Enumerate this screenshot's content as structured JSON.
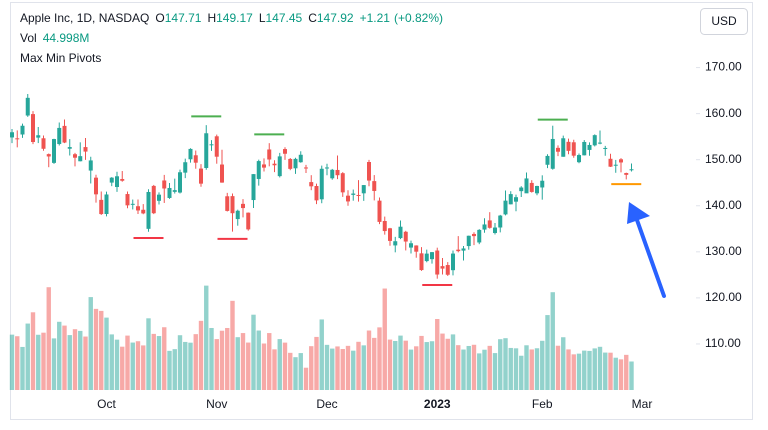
{
  "chart_data": {
    "type": "candlestick",
    "symbol": "Apple Inc, 1D, NASDAQ",
    "ohlc_labels": [
      "O",
      "H",
      "L",
      "C"
    ],
    "change": {
      "value": 1.21,
      "label": "+1.21"
    },
    "change_percent": {
      "value": 0.82,
      "label": "(+0.82%)"
    },
    "volume_name": "Vol",
    "volume_value_label": "44.998M",
    "indicator": "Max Min Pivots",
    "currency": "USD",
    "categories": [
      null,
      null,
      null,
      null,
      null,
      null,
      null,
      null,
      null,
      null,
      null,
      null,
      null,
      null,
      null,
      null,
      null,
      null,
      "Oct",
      null,
      null,
      null,
      null,
      null,
      null,
      null,
      null,
      null,
      null,
      null,
      null,
      null,
      null,
      null,
      null,
      null,
      null,
      null,
      null,
      "Nov",
      null,
      null,
      null,
      null,
      null,
      null,
      null,
      null,
      null,
      null,
      null,
      null,
      null,
      null,
      null,
      null,
      null,
      null,
      null,
      null,
      "Dec",
      null,
      null,
      null,
      null,
      null,
      null,
      null,
      null,
      null,
      null,
      null,
      null,
      null,
      null,
      null,
      null,
      null,
      null,
      null,
      null,
      "2023",
      null,
      null,
      null,
      null,
      null,
      null,
      null,
      null,
      null,
      null,
      null,
      null,
      null,
      null,
      null,
      null,
      null,
      null,
      null,
      "Feb",
      null,
      null,
      null,
      null,
      null,
      null,
      null,
      null,
      null,
      null,
      null,
      null,
      null,
      null,
      null,
      null,
      null,
      null,
      "Mar"
    ],
    "open": [
      154.83,
      154.64,
      155.47,
      159.59,
      159.9,
      154.79,
      154.65,
      151.21,
      149.31,
      153.4,
      157.34,
      152.38,
      151.19,
      149.66,
      152.74,
      147.64,
      146.1,
      141.28,
      138.21,
      145.03,
      144.07,
      145.81,
      142.54,
      140.42,
      139.9,
      139.13,
      134.99,
      144.31,
      141.07,
      145.49,
      141.69,
      143.02,
      142.87,
      147.19,
      150.09,
      150.96,
      148.07,
      148.2,
      153.16,
      155.08,
      148.95,
      142.06,
      142.09,
      137.11,
      140.41,
      138.5,
      141.24,
      145.82,
      148.97,
      152.22,
      149.13,
      146.43,
      152.31,
      150.16,
      148.13,
      149.45,
      148.31,
      145.14,
      144.29,
      141.4,
      148.21,
      145.96,
      147.77,
      147.07,
      142.19,
      142.36,
      142.34,
      142.7,
      149.5,
      145.35,
      141.11,
      136.69,
      135.11,
      131.39,
      132.98,
      134.35,
      130.92,
      131.38,
      129.67,
      127.99,
      128.41,
      130.28,
      126.89,
      127.13,
      126.01,
      130.47,
      130.26,
      131.25,
      133.88,
      132.03,
      134.83,
      136.82,
      134.08,
      135.28,
      138.12,
      140.31,
      140.89,
      143.17,
      142.7,
      144.96,
      142.7,
      143.97,
      148.9,
      148.03,
      152.57,
      150.64,
      153.88,
      153.78,
      149.46,
      150.95,
      152.12,
      153.11,
      153.51,
      152.35,
      150.2,
      148.87,
      150.09,
      147.11,
      147.71,
      null,
      null
    ],
    "high": [
      156.67,
      156.36,
      157.82,
      164.26,
      160.54,
      157.1,
      155.24,
      151.35,
      154.56,
      158.08,
      158.74,
      154.47,
      151.47,
      153.77,
      154.72,
      150.64,
      146.72,
      143.1,
      143.07,
      146.22,
      147.38,
      147.54,
      143.1,
      141.35,
      141.35,
      140.36,
      143.59,
      144.52,
      142.9,
      146.7,
      144.95,
      145.89,
      147.85,
      150.23,
      152.49,
      151.99,
      149.05,
      157.5,
      154.24,
      155.45,
      152.17,
      142.8,
      142.67,
      139.15,
      141.43,
      138.55,
      146.87,
      150.01,
      150.28,
      153.59,
      149.87,
      151.48,
      152.7,
      150.37,
      150.42,
      151.83,
      148.88,
      146.64,
      144.81,
      148.72,
      149.13,
      148.0,
      150.92,
      147.3,
      143.37,
      143.52,
      145.57,
      144.5,
      149.97,
      146.66,
      141.79,
      137.65,
      135.2,
      133.25,
      136.81,
      134.56,
      132.42,
      131.41,
      131.03,
      130.48,
      129.95,
      130.9,
      128.66,
      127.77,
      130.29,
      133.41,
      131.26,
      133.51,
      134.26,
      134.92,
      137.29,
      138.61,
      136.25,
      138.02,
      143.32,
      143.16,
      142.43,
      144.25,
      147.23,
      145.55,
      144.34,
      146.61,
      151.18,
      157.38,
      153.1,
      155.23,
      154.58,
      154.33,
      151.34,
      154.26,
      153.77,
      155.5,
      156.33,
      153.0,
      151.3,
      149.95,
      150.34,
      147.19,
      149.17,
      null,
      null
    ],
    "low": [
      153.61,
      152.68,
      154.75,
      159.3,
      153.37,
      153.61,
      151.94,
      148.37,
      149.1,
      153.08,
      153.6,
      150.91,
      148.56,
      149.64,
      149.95,
      144.84,
      140.68,
      138.0,
      137.69,
      144.26,
      143.01,
      145.22,
      139.45,
      139.2,
      138.22,
      138.16,
      134.37,
      138.19,
      140.27,
      140.61,
      141.5,
      142.65,
      142.65,
      146.0,
      149.36,
      148.04,
      144.13,
      147.82,
      151.92,
      149.13,
      145.0,
      138.75,
      134.38,
      135.67,
      137.49,
      134.59,
      139.5,
      144.37,
      147.43,
      148.56,
      147.29,
      146.15,
      149.97,
      147.72,
      146.93,
      149.34,
      147.12,
      143.38,
      140.35,
      140.55,
      146.61,
      145.65,
      145.77,
      141.92,
      140.0,
      141.1,
      140.9,
      141.06,
      144.24,
      141.16,
      136.02,
      133.73,
      131.32,
      129.89,
      132.75,
      130.3,
      129.64,
      128.72,
      125.87,
      127.73,
      127.43,
      124.17,
      125.08,
      124.76,
      124.89,
      129.89,
      128.12,
      130.46,
      131.44,
      131.66,
      134.13,
      135.03,
      133.77,
      134.22,
      137.9,
      140.3,
      138.81,
      141.9,
      143.08,
      142.85,
      142.28,
      141.32,
      148.17,
      147.83,
      150.78,
      150.64,
      151.17,
      150.42,
      149.22,
      150.92,
      150.86,
      152.88,
      153.35,
      150.85,
      148.41,
      147.16,
      147.24,
      145.72,
      147.45,
      null,
      null
    ],
    "close": [
      155.96,
      154.46,
      157.37,
      163.43,
      153.84,
      155.31,
      152.37,
      150.7,
      154.48,
      156.9,
      153.72,
      152.74,
      150.43,
      150.77,
      151.76,
      149.84,
      142.48,
      138.2,
      142.45,
      146.1,
      146.4,
      145.43,
      140.09,
      140.42,
      138.98,
      138.34,
      142.99,
      138.38,
      142.41,
      143.75,
      143.86,
      143.39,
      147.27,
      149.45,
      152.34,
      149.35,
      144.8,
      155.74,
      153.34,
      150.65,
      145.03,
      138.88,
      138.38,
      138.92,
      139.5,
      134.87,
      146.87,
      149.7,
      148.28,
      150.04,
      148.79,
      150.72,
      151.29,
      148.01,
      150.18,
      151.07,
      148.11,
      144.22,
      141.17,
      148.03,
      148.31,
      147.81,
      146.63,
      142.91,
      140.94,
      142.65,
      142.16,
      144.49,
      145.47,
      143.21,
      136.5,
      134.51,
      132.37,
      132.3,
      135.45,
      132.23,
      131.86,
      130.03,
      126.04,
      129.61,
      129.93,
      125.07,
      126.36,
      125.02,
      129.62,
      130.15,
      130.73,
      133.49,
      133.41,
      134.76,
      135.94,
      135.21,
      135.27,
      137.87,
      141.11,
      142.53,
      141.86,
      143.96,
      145.93,
      143.0,
      144.29,
      145.43,
      150.82,
      154.5,
      151.73,
      154.65,
      151.92,
      150.87,
      151.01,
      153.85,
      153.2,
      155.33,
      153.71,
      152.55,
      148.48,
      148.91,
      149.4,
      146.71,
      147.92,
      null,
      null
    ],
    "volume": [
      87.4,
      84.9,
      68.0,
      104.9,
      122.7,
      87.2,
      90.5,
      162.3,
      81.5,
      107.7,
      101.7,
      86.7,
      96.0,
      93.3,
      84.4,
      146.7,
      128.1,
      124.9,
      114.3,
      87.8,
      79.5,
      68.4,
      85.9,
      74.9,
      77.0,
      70.4,
      113.2,
      88.6,
      85.2,
      99.1,
      61.8,
      64.5,
      86.5,
      75.9,
      74.7,
      88.2,
      109.2,
      164.8,
      97.9,
      80.4,
      93.6,
      97.9,
      140.8,
      83.4,
      89.9,
      74.9,
      118.9,
      93.9,
      73.4,
      89.9,
      64.2,
      80.4,
      74.8,
      58.7,
      51.8,
      58.3,
      35.2,
      69.2,
      83.8,
      111.4,
      71.3,
      65.4,
      68.8,
      64.7,
      69.7,
      62.1,
      76.1,
      70.5,
      93.9,
      82.3,
      98.9,
      160.2,
      79.6,
      77.4,
      85.9,
      77.9,
      63.8,
      69.0,
      85.4,
      75.7,
      77.0,
      112.1,
      89.1,
      80.9,
      87.8,
      70.8,
      63.9,
      69.5,
      71.4,
      57.8,
      63.6,
      69.7,
      58.3,
      80.2,
      81.8,
      66.4,
      65.8,
      54.1,
      70.6,
      64.0,
      65.9,
      77.7,
      118.3,
      154.4,
      69.9,
      83.3,
      64.1,
      56.3,
      57.4,
      62.2,
      61.7,
      65.7,
      68.2,
      59.1,
      58.9,
      51.0,
      48.4,
      55.5,
      44.998,
      null,
      null
    ],
    "up_color": "#26a69a",
    "down_color": "#ef5350",
    "volume_ylim": [
      0,
      600
    ],
    "pivots": [
      {
        "at": 26,
        "value": 133.0,
        "color": "#f23645"
      },
      {
        "at": 37,
        "value": 159.4,
        "color": "#4caf50"
      },
      {
        "at": 42,
        "value": 132.8,
        "color": "#f23645"
      },
      {
        "at": 49,
        "value": 155.5,
        "color": "#4caf50"
      },
      {
        "at": 81,
        "value": 122.8,
        "color": "#f23645"
      },
      {
        "at": 103,
        "value": 158.7,
        "color": "#4caf50"
      },
      {
        "at": 117,
        "value": 144.7,
        "color": "#ff9800"
      }
    ],
    "ylim": [
      100,
      182.5
    ],
    "yticks": [
      {
        "value": 110,
        "label": "110.00"
      },
      {
        "value": 120,
        "label": "120.00"
      },
      {
        "value": 130,
        "label": "130.00"
      },
      {
        "value": 140,
        "label": "140.00"
      },
      {
        "value": 150,
        "label": "150.00"
      },
      {
        "value": 160,
        "label": "160.00"
      },
      {
        "value": 170,
        "label": "170.00"
      }
    ],
    "grid": false
  }
}
